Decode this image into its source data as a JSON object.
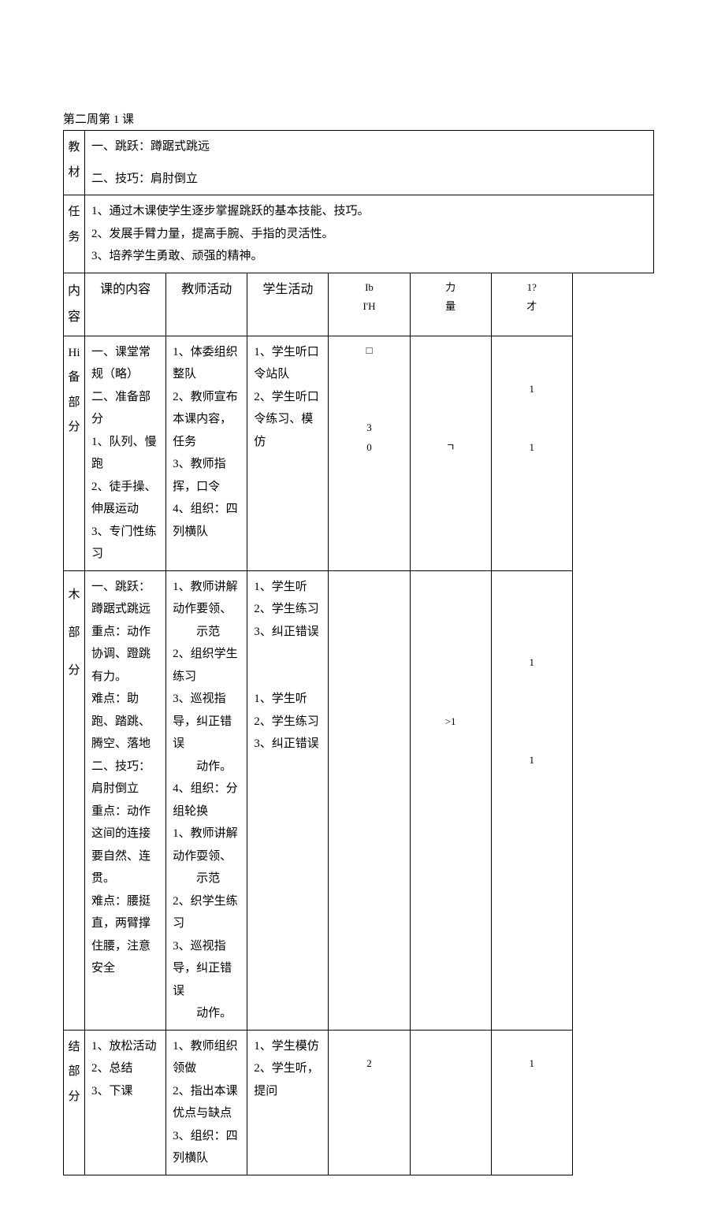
{
  "title": "第二周第 1 课",
  "jiaocai": {
    "label": "教材",
    "line1": "一、跳跃：蹲踞式跳远",
    "line2": "二、技巧：肩肘倒立"
  },
  "renwu": {
    "label": "任务",
    "line1": "1、通过木课使学生逐步掌握跳跃的基本技能、技巧。",
    "line2": "2、发展手臂力量，提高手腕、手指的灵活性。",
    "line3": "3、培养学生勇敢、顽强的精神。"
  },
  "header": {
    "col1": "内容",
    "col2": "课的内容",
    "col3": "教师活动",
    "col4": "学生活动",
    "col5a": "Ib",
    "col5b": "I'H",
    "col6a": "力",
    "col6b": "量",
    "col7a": "1?",
    "col7b": "才"
  },
  "prep": {
    "label": "Hi备部分",
    "content": "一、课堂常规（略）\n二、准备部分\n1、队列、慢跑\n2、徒手操、伸展运动\n3、专门性练习",
    "teacher": "1、体委组织整队\n2、教师宣布本课内容，任务\n3、教师指挥，口令\n4、组织：四列横队",
    "student": "1、学生听口令站队\n2、学生听口令练习、模仿",
    "c5": "□\n\n\n\n3\n0",
    "c6": "\n\n\n\n\nㄱ",
    "c7": "\n\n1\n\n\n1"
  },
  "main": {
    "label": "木\n部\n分",
    "content_a": "一、跳跃：蹲踞式跳远\n重点：动作协调、蹬跳有力。\n难点：助跑、踏跳、腾空、落地\n二、技巧：肩肘倒立\n重点：动作这间的连接要自然、连贯。\n难点：腰挺直，两臂撑住腰，注意安全",
    "teacher_a1": "1、教师讲解动作要领、",
    "teacher_a1b": "示范",
    "teacher_a2": "2、组织学生练习",
    "teacher_a3": "3、巡视指导，纠正错误",
    "teacher_a3b": "动作。",
    "teacher_a4": "4、组织：分组轮换",
    "teacher_b1": "1、教师讲解动作耍领、",
    "teacher_b1b": "示范",
    "teacher_b2": "2、织学生练习",
    "teacher_b3": "3、巡视指导，纠正错误",
    "teacher_b3b": "动作。",
    "student_a": "1、学生听\n2、学生练习\n3、纠正错误",
    "student_b": "1、学生听\n2、学生练习\n3、纠正错误",
    "c5": "",
    "c6": "\n\n\n\n\n\n\n>1",
    "c7": "\n\n\n\n1\n\n\n\n\n1"
  },
  "end": {
    "label": "结\n部\n分",
    "content": "1、放松活动\n2、总结\n3、下课",
    "teacher": "1、教师组织领做\n2、指出本课优点与缺点\n3、组织：四列横队",
    "student": "1、学生模仿\n2、学生听，提问",
    "c5": "\n2",
    "c6": "",
    "c7": "\n1"
  }
}
